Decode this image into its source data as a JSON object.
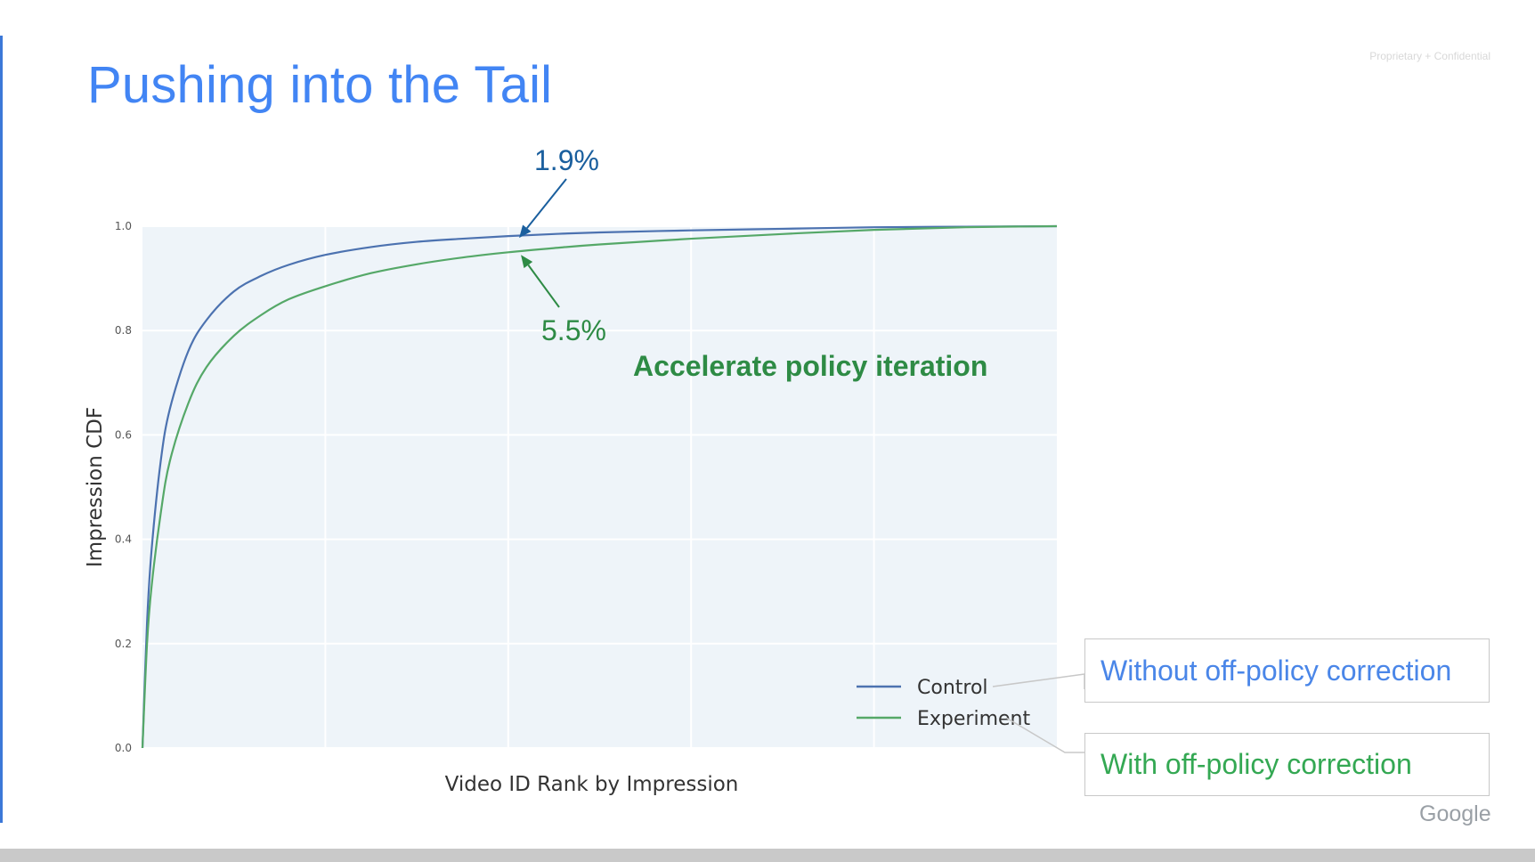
{
  "slide": {
    "title": "Pushing into the Tail",
    "confidential": "Proprietary + Confidential",
    "logo": "Google"
  },
  "annotations": {
    "control_gap": "1.9%",
    "experiment_gap": "5.5%",
    "headline": "Accelerate policy iteration",
    "control_callout": "Without off-policy correction",
    "experiment_callout": "With off-policy correction"
  },
  "colors": {
    "title": "#4285f4",
    "control": "#4c72b0",
    "experiment": "#55a868",
    "plot_bg": "#eef4f9",
    "annotation_blue": "#1a5f9e",
    "annotation_green": "#2e8b45"
  },
  "chart_data": {
    "type": "line",
    "title": "",
    "xlabel": "Video ID Rank by Impression",
    "ylabel": "Impression CDF",
    "xlim": [
      0,
      1
    ],
    "ylim": [
      0,
      1
    ],
    "x_ticks_labeled": false,
    "y_ticks": [
      "0.0",
      "0.2",
      "0.4",
      "0.6",
      "0.8",
      "1.0"
    ],
    "grid": true,
    "legend": "bottom-right",
    "x": [
      0,
      0.005,
      0.01,
      0.02,
      0.03,
      0.05,
      0.07,
      0.1,
      0.13,
      0.16,
      0.2,
      0.25,
      0.3,
      0.35,
      0.4,
      0.45,
      0.5,
      0.6,
      0.7,
      0.8,
      0.9,
      1.0
    ],
    "series": [
      {
        "name": "Control",
        "values": [
          0,
          0.24,
          0.38,
          0.55,
          0.65,
          0.76,
          0.82,
          0.875,
          0.905,
          0.926,
          0.945,
          0.96,
          0.97,
          0.976,
          0.981,
          0.985,
          0.988,
          0.992,
          0.995,
          0.998,
          0.999,
          1.0
        ]
      },
      {
        "name": "Experiment",
        "values": [
          0,
          0.2,
          0.31,
          0.45,
          0.55,
          0.66,
          0.73,
          0.79,
          0.83,
          0.86,
          0.885,
          0.91,
          0.927,
          0.94,
          0.95,
          0.958,
          0.965,
          0.976,
          0.985,
          0.993,
          0.998,
          1.0
        ]
      }
    ],
    "annotations": [
      {
        "text": "1.9%",
        "series": "Control",
        "x": 0.41,
        "y": 0.981
      },
      {
        "text": "5.5%",
        "series": "Experiment",
        "x": 0.41,
        "y": 0.95
      }
    ]
  }
}
